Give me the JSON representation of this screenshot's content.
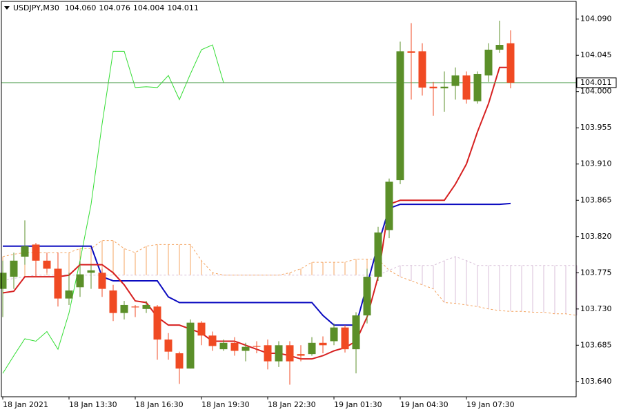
{
  "chart_data": {
    "type": "candlestick",
    "title": "USDJPY,M30",
    "header": [
      "104.060",
      "104.076",
      "104.004",
      "104.011"
    ],
    "categories": [
      "18 Jan 2021",
      null,
      null,
      null,
      null,
      null,
      "18 Jan 13:30",
      null,
      null,
      null,
      null,
      null,
      "18 Jan 16:30",
      null,
      null,
      null,
      null,
      null,
      "18 Jan 19:30",
      null,
      null,
      null,
      null,
      null,
      "18 Jan 22:30",
      null,
      null,
      null,
      null,
      null,
      "19 Jan 01:30",
      null,
      null,
      null,
      null,
      null,
      "19 Jan 04:30",
      null,
      null,
      null,
      null,
      null,
      "19 Jan 07:30",
      null,
      null,
      null,
      null,
      null,
      null,
      null,
      null,
      null,
      null
    ],
    "open": [
      103.755,
      103.77,
      103.795,
      103.81,
      103.79,
      103.78,
      103.743,
      103.757,
      103.775,
      103.775,
      103.753,
      103.725,
      103.733,
      103.73,
      103.733,
      103.692,
      103.675,
      103.656,
      103.713,
      103.697,
      103.68,
      103.688,
      103.678,
      103.684,
      103.685,
      103.665,
      103.685,
      103.674,
      103.674,
      103.688,
      103.69,
      103.707,
      103.68,
      103.722,
      103.77,
      103.828,
      103.89,
      104.05,
      104.05,
      104.006,
      104.004,
      104.007,
      104.02,
      103.988,
      104.02,
      104.052,
      104.06,
      null,
      null,
      null,
      null,
      null,
      null
    ],
    "high": [
      103.79,
      103.8,
      103.84,
      103.812,
      103.8,
      103.8,
      103.775,
      103.79,
      103.785,
      103.78,
      103.76,
      103.74,
      103.735,
      103.74,
      103.735,
      103.7,
      103.677,
      103.717,
      103.715,
      103.702,
      103.692,
      103.695,
      103.688,
      103.69,
      103.692,
      103.69,
      103.69,
      103.685,
      103.695,
      103.696,
      103.712,
      103.71,
      103.726,
      103.78,
      103.832,
      103.892,
      104.062,
      104.085,
      104.06,
      104.012,
      104.025,
      104.03,
      104.025,
      104.025,
      104.06,
      104.088,
      104.076,
      null,
      null,
      null,
      null,
      null,
      null
    ],
    "low": [
      103.72,
      103.755,
      103.785,
      103.77,
      103.775,
      103.733,
      103.735,
      103.745,
      103.755,
      103.745,
      103.715,
      103.717,
      103.72,
      103.725,
      103.667,
      103.667,
      103.637,
      103.656,
      103.685,
      103.678,
      103.678,
      103.672,
      103.665,
      103.675,
      103.655,
      103.658,
      103.636,
      103.665,
      103.672,
      103.675,
      103.685,
      103.676,
      103.65,
      103.712,
      103.765,
      103.818,
      103.885,
      103.99,
      103.995,
      103.97,
      103.975,
      103.99,
      103.985,
      103.985,
      104.012,
      104.048,
      104.004,
      null,
      null,
      null,
      null,
      null,
      null
    ],
    "close": [
      103.775,
      103.79,
      103.808,
      103.79,
      103.78,
      103.743,
      103.753,
      103.773,
      103.778,
      103.755,
      103.725,
      103.735,
      103.732,
      103.735,
      103.692,
      103.677,
      103.656,
      103.713,
      103.697,
      103.684,
      103.688,
      103.678,
      103.683,
      103.683,
      103.665,
      103.685,
      103.665,
      103.672,
      103.688,
      103.685,
      103.707,
      103.68,
      103.722,
      103.77,
      103.825,
      103.888,
      104.05,
      104.048,
      104.005,
      104.004,
      104.006,
      104.02,
      103.99,
      104.022,
      104.052,
      104.058,
      104.011,
      null,
      null,
      null,
      null,
      null,
      null
    ],
    "up_color": "#5b8f29",
    "down_color": "#f04a23",
    "ichimoku": {
      "tenkan": {
        "color": "#d61f1f",
        "values": [
          103.75,
          103.752,
          103.77,
          103.77,
          103.77,
          103.77,
          103.772,
          103.785,
          103.785,
          103.785,
          103.775,
          103.76,
          103.74,
          103.738,
          103.72,
          103.71,
          103.71,
          103.705,
          103.7,
          103.69,
          103.69,
          103.69,
          103.685,
          103.68,
          103.675,
          103.675,
          103.672,
          103.668,
          103.668,
          103.672,
          103.678,
          103.682,
          103.69,
          103.72,
          103.77,
          103.86,
          103.865,
          103.865,
          103.865,
          103.865,
          103.865,
          103.885,
          103.91,
          103.95,
          103.985,
          104.03,
          104.03,
          null,
          null,
          null,
          null,
          null,
          null
        ]
      },
      "kijun": {
        "color": "#0b0bc0",
        "values": [
          103.808,
          103.808,
          103.808,
          103.808,
          103.808,
          103.808,
          103.808,
          103.808,
          103.808,
          103.77,
          103.765,
          103.765,
          103.765,
          103.765,
          103.765,
          103.745,
          103.738,
          103.738,
          103.738,
          103.738,
          103.738,
          103.738,
          103.738,
          103.738,
          103.738,
          103.738,
          103.738,
          103.738,
          103.738,
          103.722,
          103.71,
          103.71,
          103.71,
          103.76,
          103.81,
          103.855,
          103.86,
          103.86,
          103.86,
          103.86,
          103.86,
          103.86,
          103.86,
          103.86,
          103.86,
          103.86,
          103.861,
          null,
          null,
          null,
          null,
          null,
          null
        ]
      },
      "chikou": {
        "color": "#33dd33",
        "values": [
          103.65,
          103.672,
          103.693,
          103.69,
          103.702,
          103.68,
          103.725,
          103.79,
          103.86,
          103.96,
          104.05,
          104.05,
          104.005,
          104.006,
          104.005,
          104.02,
          103.99,
          104.022,
          104.052,
          104.058,
          104.011,
          null,
          null,
          null,
          null,
          null,
          null,
          null,
          null,
          null,
          null,
          null,
          null,
          null,
          null,
          null,
          null,
          null,
          null,
          null,
          null,
          null,
          null,
          null,
          null,
          null,
          null,
          null,
          null,
          null,
          null,
          null,
          null
        ]
      },
      "span_a": {
        "color": "#f4a460",
        "values": [
          103.795,
          103.798,
          103.8,
          103.8,
          103.8,
          103.8,
          103.8,
          103.805,
          103.805,
          103.815,
          103.815,
          103.805,
          103.8,
          103.808,
          103.81,
          103.81,
          103.81,
          103.81,
          103.79,
          103.775,
          103.772,
          103.772,
          103.772,
          103.772,
          103.772,
          103.772,
          103.775,
          103.78,
          103.788,
          103.788,
          103.788,
          103.788,
          103.792,
          103.792,
          103.792,
          103.778,
          103.77,
          103.765,
          103.76,
          103.755,
          103.738,
          103.737,
          103.735,
          103.733,
          103.73,
          103.728,
          103.727,
          103.727,
          103.726,
          103.726,
          103.724,
          103.724,
          103.722
        ]
      },
      "span_b": {
        "color": "#d8bfd8",
        "values": [
          103.765,
          103.768,
          103.77,
          103.772,
          103.772,
          103.772,
          103.772,
          103.772,
          103.772,
          103.772,
          103.772,
          103.772,
          103.772,
          103.772,
          103.772,
          103.772,
          103.772,
          103.772,
          103.772,
          103.772,
          103.772,
          103.772,
          103.772,
          103.772,
          103.772,
          103.772,
          103.772,
          103.772,
          103.772,
          103.772,
          103.772,
          103.772,
          103.772,
          103.772,
          103.772,
          103.778,
          103.784,
          103.784,
          103.784,
          103.784,
          103.79,
          103.795,
          103.79,
          103.784,
          103.784,
          103.784,
          103.784,
          103.784,
          103.784,
          103.784,
          103.784,
          103.784,
          103.784
        ]
      }
    },
    "price_line": {
      "value": 104.011,
      "label": "104.011",
      "color": "#5fa85f"
    },
    "ylim": [
      103.621,
      104.112
    ],
    "yticks": [
      {
        "value": 103.64,
        "label": "103.640"
      },
      {
        "value": 103.685,
        "label": "103.685"
      },
      {
        "value": 103.73,
        "label": "103.730"
      },
      {
        "value": 103.775,
        "label": "103.775"
      },
      {
        "value": 103.82,
        "label": "103.820"
      },
      {
        "value": 103.865,
        "label": "103.865"
      },
      {
        "value": 103.91,
        "label": "103.910"
      },
      {
        "value": 103.955,
        "label": "103.955"
      },
      {
        "value": 104.0,
        "label": "104.000"
      },
      {
        "value": 104.045,
        "label": "104.045"
      },
      {
        "value": 104.09,
        "label": "104.090"
      }
    ]
  }
}
